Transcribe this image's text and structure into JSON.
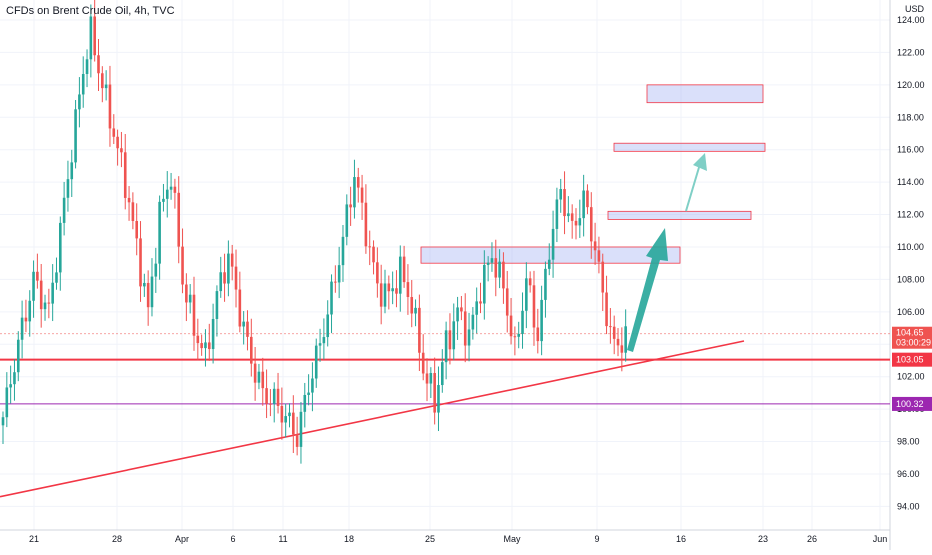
{
  "chart_data": {
    "type": "candlestick",
    "title": "CFDs on Brent Crude Oil, 4h, TVC",
    "currency": "USD",
    "ylim": [
      92.5,
      125.2
    ],
    "y_ticks": [
      "124.00",
      "122.00",
      "120.00",
      "118.00",
      "116.00",
      "114.00",
      "112.00",
      "110.00",
      "108.00",
      "106.00",
      "104.00",
      "102.00",
      "100.00",
      "98.00",
      "96.00",
      "94.00"
    ],
    "x_ticks": [
      "21",
      "28",
      "Apr",
      "6",
      "11",
      "18",
      "25",
      "May",
      "9",
      "16",
      "23",
      "26",
      "Jun"
    ],
    "current_price": {
      "label": "104.65",
      "countdown": "03:00:29",
      "value": 104.65
    },
    "levels": [
      {
        "label": "103.05",
        "value": 103.05,
        "color": "#f23645"
      },
      {
        "label": "100.32",
        "value": 100.32,
        "color": "#9c27b0"
      }
    ],
    "zones": [
      {
        "from": 109.0,
        "to": 110.0
      },
      {
        "from": 111.7,
        "to": 112.2
      },
      {
        "from": 115.9,
        "to": 116.4
      },
      {
        "from": 118.9,
        "to": 120.0
      }
    ],
    "trendline": {
      "color": "#f23645"
    },
    "arrows": {
      "color": "#26a69a"
    },
    "colors": {
      "up": "#26a69a",
      "down": "#ef5350",
      "grid": "#f0f3fa",
      "axis_text": "#131722"
    },
    "anchors": [
      [
        0,
        99.5
      ],
      [
        4,
        104
      ],
      [
        8,
        108
      ],
      [
        12,
        106
      ],
      [
        15,
        111
      ],
      [
        18,
        116
      ],
      [
        21,
        121
      ],
      [
        23,
        123.2
      ],
      [
        26,
        120
      ],
      [
        29,
        117
      ],
      [
        32,
        114
      ],
      [
        35,
        110
      ],
      [
        38,
        106
      ],
      [
        41,
        112
      ],
      [
        44,
        114.5
      ],
      [
        47,
        108
      ],
      [
        50,
        105
      ],
      [
        53,
        103.2
      ],
      [
        56,
        107
      ],
      [
        59,
        109.5
      ],
      [
        62,
        106
      ],
      [
        65,
        103
      ],
      [
        68,
        101
      ],
      [
        71,
        100.5
      ],
      [
        74,
        99.5
      ],
      [
        77,
        98.3
      ],
      [
        80,
        101.5
      ],
      [
        83,
        104
      ],
      [
        86,
        107
      ],
      [
        89,
        110.5
      ],
      [
        92,
        114.5
      ],
      [
        95,
        111
      ],
      [
        98,
        107.5
      ],
      [
        101,
        107
      ],
      [
        104,
        108.5
      ],
      [
        107,
        106.5
      ],
      [
        110,
        102.5
      ],
      [
        113,
        100.5
      ],
      [
        116,
        104
      ],
      [
        119,
        106
      ],
      [
        122,
        104.5
      ],
      [
        125,
        107.5
      ],
      [
        128,
        109.5
      ],
      [
        131,
        107.5
      ],
      [
        134,
        103.5
      ],
      [
        137,
        108
      ],
      [
        140,
        104.5
      ],
      [
        143,
        110
      ],
      [
        146,
        113.5
      ],
      [
        149,
        111
      ],
      [
        152,
        113
      ],
      [
        155,
        110
      ],
      [
        157,
        107
      ],
      [
        160,
        103.8
      ],
      [
        163,
        104.5
      ]
    ]
  }
}
